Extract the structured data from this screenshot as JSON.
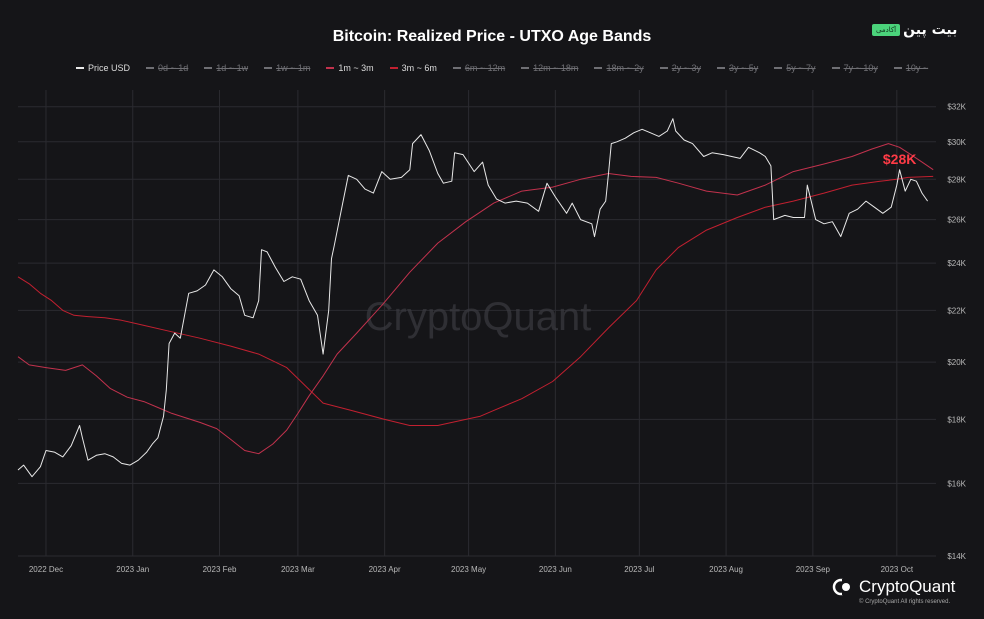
{
  "title": "Bitcoin: Realized Price - UTXO Age Bands",
  "brand": {
    "name": "بیت پین",
    "tag": "آکادمی"
  },
  "watermark": "CryptoQuant",
  "footer": {
    "logo_text": "CryptoQuant",
    "copyright": "© CryptoQuant All rights reserved."
  },
  "colors": {
    "background": "#151518",
    "grid": "#2b2b30",
    "price": "#e8e8e8",
    "band_1m_3m": "#c2324d",
    "band_3m_6m": "#c22030",
    "annotation": "#ff3b46",
    "axis_text": "#b8b8b8"
  },
  "legend": [
    {
      "label": "Price USD",
      "color": "#e8e8e8",
      "enabled": true
    },
    {
      "label": "0d ~ 1d",
      "color": "#6f6f74",
      "enabled": false
    },
    {
      "label": "1d ~ 1w",
      "color": "#6f6f74",
      "enabled": false
    },
    {
      "label": "1w ~ 1m",
      "color": "#6f6f74",
      "enabled": false
    },
    {
      "label": "1m ~ 3m",
      "color": "#c2324d",
      "enabled": true
    },
    {
      "label": "3m ~ 6m",
      "color": "#c22030",
      "enabled": true
    },
    {
      "label": "6m ~ 12m",
      "color": "#6f6f74",
      "enabled": false
    },
    {
      "label": "12m ~ 18m",
      "color": "#6f6f74",
      "enabled": false
    },
    {
      "label": "18m ~ 2y",
      "color": "#6f6f74",
      "enabled": false
    },
    {
      "label": "2y ~ 3y",
      "color": "#6f6f74",
      "enabled": false
    },
    {
      "label": "3y ~ 5y",
      "color": "#6f6f74",
      "enabled": false
    },
    {
      "label": "5y ~ 7y",
      "color": "#6f6f74",
      "enabled": false
    },
    {
      "label": "7y ~ 10y",
      "color": "#6f6f74",
      "enabled": false
    },
    {
      "label": "10y ~",
      "color": "#6f6f74",
      "enabled": false
    }
  ],
  "chart_data": {
    "type": "line",
    "title": "Bitcoin: Realized Price - UTXO Age Bands",
    "y_scale": "log",
    "ylim": [
      14000,
      33000
    ],
    "y_ticks": [
      14000,
      16000,
      18000,
      20000,
      22000,
      24000,
      26000,
      28000,
      30000,
      32000
    ],
    "y_tick_labels": [
      "$14K",
      "$16K",
      "$18K",
      "$20K",
      "$22K",
      "$24K",
      "$26K",
      "$28K",
      "$30K",
      "$32K"
    ],
    "xlim": [
      "2022-11-21",
      "2023-10-15"
    ],
    "x_ticks": [
      "2022-12-01",
      "2023-01-01",
      "2023-02-01",
      "2023-03-01",
      "2023-04-01",
      "2023-05-01",
      "2023-06-01",
      "2023-07-01",
      "2023-08-01",
      "2023-09-01",
      "2023-10-01"
    ],
    "x_tick_labels": [
      "2022 Dec",
      "2023 Jan",
      "2023 Feb",
      "2023 Mar",
      "2023 Apr",
      "2023 May",
      "2023 Jun",
      "2023 Jul",
      "2023 Aug",
      "2023 Sep",
      "2023 Oct"
    ],
    "grid": true,
    "legend_position": "top",
    "annotation": {
      "text": "$28K",
      "x": "2023-10-02",
      "y": 28600
    },
    "series": [
      {
        "name": "Price USD",
        "color": "#e8e8e8",
        "width": 1,
        "x": [
          "2022-11-21",
          "2022-11-23",
          "2022-11-26",
          "2022-11-29",
          "2022-12-01",
          "2022-12-04",
          "2022-12-07",
          "2022-12-10",
          "2022-12-13",
          "2022-12-14",
          "2022-12-16",
          "2022-12-19",
          "2022-12-22",
          "2022-12-25",
          "2022-12-28",
          "2022-12-31",
          "2023-01-03",
          "2023-01-06",
          "2023-01-08",
          "2023-01-10",
          "2023-01-12",
          "2023-01-13",
          "2023-01-14",
          "2023-01-16",
          "2023-01-18",
          "2023-01-21",
          "2023-01-24",
          "2023-01-27",
          "2023-01-30",
          "2023-02-02",
          "2023-02-05",
          "2023-02-08",
          "2023-02-10",
          "2023-02-13",
          "2023-02-15",
          "2023-02-16",
          "2023-02-18",
          "2023-02-21",
          "2023-02-24",
          "2023-02-27",
          "2023-03-02",
          "2023-03-05",
          "2023-03-08",
          "2023-03-10",
          "2023-03-12",
          "2023-03-13",
          "2023-03-14",
          "2023-03-17",
          "2023-03-19",
          "2023-03-22",
          "2023-03-25",
          "2023-03-28",
          "2023-03-31",
          "2023-04-03",
          "2023-04-07",
          "2023-04-10",
          "2023-04-11",
          "2023-04-14",
          "2023-04-17",
          "2023-04-20",
          "2023-04-22",
          "2023-04-25",
          "2023-04-26",
          "2023-04-29",
          "2023-05-03",
          "2023-05-06",
          "2023-05-08",
          "2023-05-11",
          "2023-05-14",
          "2023-05-18",
          "2023-05-22",
          "2023-05-26",
          "2023-05-29",
          "2023-06-01",
          "2023-06-05",
          "2023-06-07",
          "2023-06-10",
          "2023-06-14",
          "2023-06-15",
          "2023-06-17",
          "2023-06-19",
          "2023-06-20",
          "2023-06-21",
          "2023-06-23",
          "2023-06-26",
          "2023-06-29",
          "2023-07-02",
          "2023-07-05",
          "2023-07-08",
          "2023-07-11",
          "2023-07-13",
          "2023-07-14",
          "2023-07-17",
          "2023-07-20",
          "2023-07-24",
          "2023-07-27",
          "2023-07-31",
          "2023-08-03",
          "2023-08-06",
          "2023-08-09",
          "2023-08-13",
          "2023-08-15",
          "2023-08-17",
          "2023-08-18",
          "2023-08-22",
          "2023-08-25",
          "2023-08-29",
          "2023-08-30",
          "2023-09-02",
          "2023-09-05",
          "2023-09-08",
          "2023-09-11",
          "2023-09-14",
          "2023-09-17",
          "2023-09-20",
          "2023-09-23",
          "2023-09-26",
          "2023-09-29",
          "2023-10-01",
          "2023-10-02",
          "2023-10-04",
          "2023-10-06",
          "2023-10-08",
          "2023-10-10",
          "2023-10-12"
        ],
        "y": [
          16400,
          16550,
          16200,
          16500,
          17000,
          16950,
          16800,
          17150,
          17800,
          17400,
          16700,
          16850,
          16900,
          16800,
          16600,
          16550,
          16700,
          16950,
          17200,
          17400,
          18100,
          19000,
          20700,
          21100,
          20900,
          22700,
          22800,
          23050,
          23700,
          23400,
          22900,
          22600,
          21800,
          21700,
          22400,
          24600,
          24500,
          23800,
          23200,
          23400,
          23300,
          22400,
          21800,
          20300,
          22000,
          24200,
          24800,
          26800,
          28200,
          28000,
          27500,
          27300,
          28400,
          28000,
          28100,
          28500,
          29900,
          30400,
          29500,
          28300,
          27800,
          27900,
          29400,
          29300,
          28400,
          28900,
          27700,
          27000,
          26800,
          26900,
          26800,
          26400,
          27800,
          27100,
          26300,
          26800,
          26000,
          25800,
          25200,
          26500,
          26900,
          28300,
          29900,
          30000,
          30200,
          30500,
          30700,
          30500,
          30300,
          30600,
          31300,
          30600,
          30100,
          29900,
          29200,
          29400,
          29300,
          29200,
          29100,
          29700,
          29400,
          29200,
          28700,
          26000,
          26200,
          26100,
          26100,
          27700,
          26000,
          25800,
          25900,
          25200,
          26300,
          26500,
          26900,
          26600,
          26300,
          26600,
          27700,
          28500,
          27400,
          28000,
          27900,
          27300,
          26900
        ]
      },
      {
        "name": "1m ~ 3m",
        "color": "#c2324d",
        "width": 1,
        "x": [
          "2022-11-21",
          "2022-11-25",
          "2022-12-01",
          "2022-12-08",
          "2022-12-14",
          "2022-12-19",
          "2022-12-24",
          "2022-12-30",
          "2023-01-05",
          "2023-01-10",
          "2023-01-15",
          "2023-01-20",
          "2023-01-25",
          "2023-01-31",
          "2023-02-05",
          "2023-02-10",
          "2023-02-15",
          "2023-02-20",
          "2023-02-25",
          "2023-03-01",
          "2023-03-05",
          "2023-03-10",
          "2023-03-15",
          "2023-03-22",
          "2023-03-31",
          "2023-04-10",
          "2023-04-20",
          "2023-04-30",
          "2023-05-10",
          "2023-05-20",
          "2023-05-31",
          "2023-06-10",
          "2023-06-20",
          "2023-06-28",
          "2023-07-07",
          "2023-07-15",
          "2023-07-25",
          "2023-08-05",
          "2023-08-15",
          "2023-08-25",
          "2023-09-05",
          "2023-09-15",
          "2023-09-22",
          "2023-09-28",
          "2023-10-02",
          "2023-10-06",
          "2023-10-10",
          "2023-10-14"
        ],
        "y": [
          20200,
          19900,
          19800,
          19700,
          19900,
          19500,
          19050,
          18750,
          18600,
          18400,
          18200,
          18050,
          17900,
          17700,
          17350,
          17000,
          16900,
          17200,
          17650,
          18200,
          18800,
          19500,
          20300,
          21100,
          22200,
          23600,
          24900,
          25900,
          26800,
          27400,
          27600,
          28000,
          28300,
          28150,
          28100,
          27800,
          27400,
          27200,
          27700,
          28400,
          28800,
          29200,
          29600,
          29900,
          29700,
          29300,
          28900,
          28500
        ]
      },
      {
        "name": "3m ~ 6m",
        "color": "#c22030",
        "width": 1,
        "x": [
          "2022-11-21",
          "2022-11-25",
          "2022-11-29",
          "2022-12-03",
          "2022-12-07",
          "2022-12-11",
          "2022-12-16",
          "2022-12-22",
          "2022-12-28",
          "2023-01-05",
          "2023-01-15",
          "2023-01-25",
          "2023-02-05",
          "2023-02-15",
          "2023-02-25",
          "2023-03-10",
          "2023-03-20",
          "2023-04-01",
          "2023-04-10",
          "2023-04-20",
          "2023-04-30",
          "2023-05-05",
          "2023-05-10",
          "2023-05-20",
          "2023-05-31",
          "2023-06-10",
          "2023-06-20",
          "2023-06-30",
          "2023-07-07",
          "2023-07-15",
          "2023-07-25",
          "2023-08-05",
          "2023-08-15",
          "2023-08-25",
          "2023-09-05",
          "2023-09-15",
          "2023-09-25",
          "2023-10-01",
          "2023-10-05",
          "2023-10-14"
        ],
        "y": [
          23400,
          23100,
          22700,
          22400,
          22000,
          21800,
          21750,
          21700,
          21600,
          21400,
          21150,
          20900,
          20600,
          20300,
          19800,
          18550,
          18300,
          18000,
          17800,
          17800,
          18000,
          18100,
          18300,
          18700,
          19300,
          20200,
          21300,
          22400,
          23700,
          24700,
          25500,
          26100,
          26600,
          26900,
          27300,
          27700,
          27900,
          28000,
          28100,
          28150
        ]
      }
    ]
  }
}
